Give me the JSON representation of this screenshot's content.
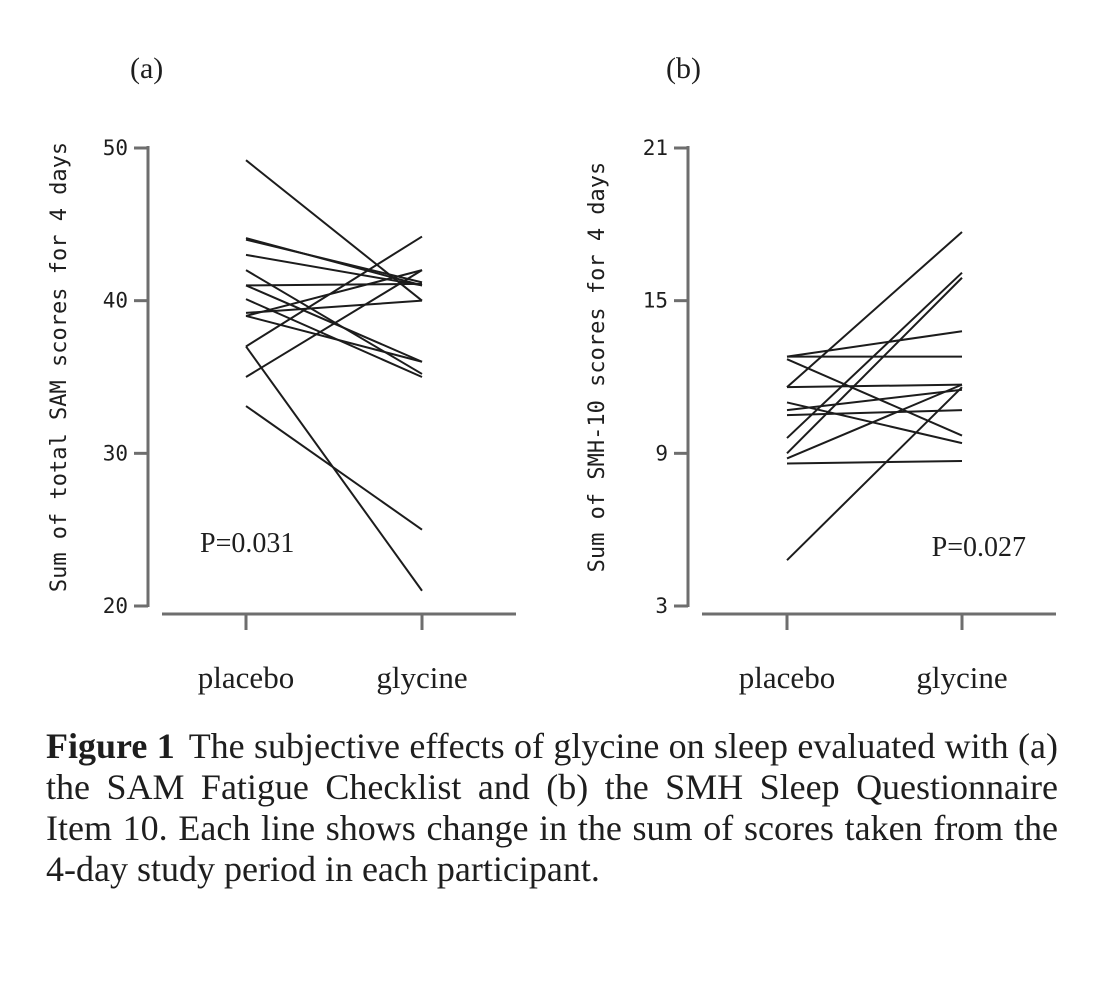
{
  "chart_data": [
    {
      "type": "line",
      "panel_label": "(a)",
      "title": "",
      "xlabel": "",
      "ylabel": "Sum of total SAM scores for 4 days",
      "categories": [
        "placebo",
        "glycine"
      ],
      "ylim": [
        20,
        50
      ],
      "yticks": [
        "20",
        "30",
        "40",
        "50"
      ],
      "annotation": "P=0.031",
      "series": [
        {
          "values": [
            49.2,
            40.0
          ]
        },
        {
          "values": [
            44.1,
            41.0
          ]
        },
        {
          "values": [
            44.0,
            41.2
          ]
        },
        {
          "values": [
            43.0,
            41.0
          ]
        },
        {
          "values": [
            42.0,
            35.2
          ]
        },
        {
          "values": [
            41.0,
            41.1
          ]
        },
        {
          "values": [
            41.0,
            36.0
          ]
        },
        {
          "values": [
            40.1,
            35.0
          ]
        },
        {
          "values": [
            39.2,
            40.0
          ]
        },
        {
          "values": [
            39.0,
            42.0
          ]
        },
        {
          "values": [
            39.0,
            36.0
          ]
        },
        {
          "values": [
            37.0,
            21.0
          ]
        },
        {
          "values": [
            37.0,
            44.2
          ]
        },
        {
          "values": [
            35.0,
            42.0
          ]
        },
        {
          "values": [
            33.1,
            25.0
          ]
        }
      ]
    },
    {
      "type": "line",
      "panel_label": "(b)",
      "title": "",
      "xlabel": "",
      "ylabel": "Sum of SMH-10 scores for 4 days",
      "categories": [
        "placebo",
        "glycine"
      ],
      "ylim": [
        3,
        21
      ],
      "yticks": [
        "3",
        "9",
        "15",
        "21"
      ],
      "annotation": "P=0.027",
      "series": [
        {
          "values": [
            12.8,
            13.8
          ]
        },
        {
          "values": [
            12.8,
            12.8
          ]
        },
        {
          "values": [
            12.7,
            9.7
          ]
        },
        {
          "values": [
            11.6,
            11.7
          ]
        },
        {
          "values": [
            11.6,
            17.7
          ]
        },
        {
          "values": [
            11.0,
            9.4
          ]
        },
        {
          "values": [
            10.7,
            11.5
          ]
        },
        {
          "values": [
            10.5,
            10.7
          ]
        },
        {
          "values": [
            9.6,
            16.1
          ]
        },
        {
          "values": [
            9.0,
            15.9
          ]
        },
        {
          "values": [
            8.8,
            11.7
          ]
        },
        {
          "values": [
            8.6,
            8.7
          ]
        },
        {
          "values": [
            4.8,
            11.6
          ]
        }
      ]
    }
  ],
  "caption": {
    "label": "Figure 1",
    "text": "The subjective effects of glycine on sleep evaluated with (a) the SAM Fatigue Checklist and (b) the SMH Sleep Questionnaire Item 10. Each line shows change in the sum of scores taken from the 4-day study period in each participant."
  }
}
